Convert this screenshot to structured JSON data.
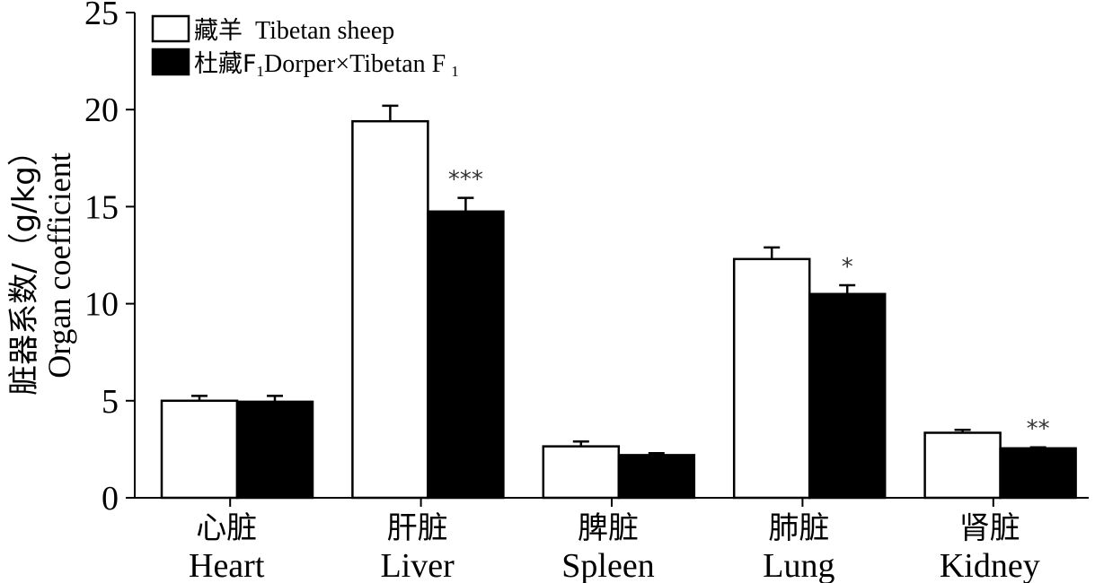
{
  "chart_data": {
    "type": "bar",
    "categories": [
      {
        "cn": "心脏",
        "en": "Heart"
      },
      {
        "cn": "肝脏",
        "en": "Liver"
      },
      {
        "cn": "脾脏",
        "en": "Spleen"
      },
      {
        "cn": "肺脏",
        "en": "Lung"
      },
      {
        "cn": "肾脏",
        "en": "Kidney"
      }
    ],
    "series": [
      {
        "name_cn": "藏羊",
        "name_en": "Tibetan sheep",
        "color": "#ffffff",
        "values": [
          5.0,
          19.4,
          2.65,
          12.3,
          3.35
        ],
        "errors": [
          0.25,
          0.8,
          0.25,
          0.6,
          0.15
        ]
      },
      {
        "name_cn": "杜藏F",
        "name_cn_sub": "1",
        "name_en": "Dorper×Tibetan F",
        "name_en_sub": "1",
        "color": "#000000",
        "values": [
          4.95,
          14.75,
          2.2,
          10.5,
          2.55
        ],
        "errors": [
          0.3,
          0.7,
          0.1,
          0.45,
          0.05
        ]
      }
    ],
    "significance": [
      "",
      "***",
      "",
      "*",
      "**"
    ],
    "ylabel_cn": "脏器系数/（g/kg）",
    "ylabel_en": "Organ coefficient",
    "ylim": [
      0,
      25
    ],
    "yticks": [
      "0",
      "5",
      "10",
      "15",
      "20",
      "25"
    ],
    "legend_position": "top-left",
    "grid": false
  }
}
